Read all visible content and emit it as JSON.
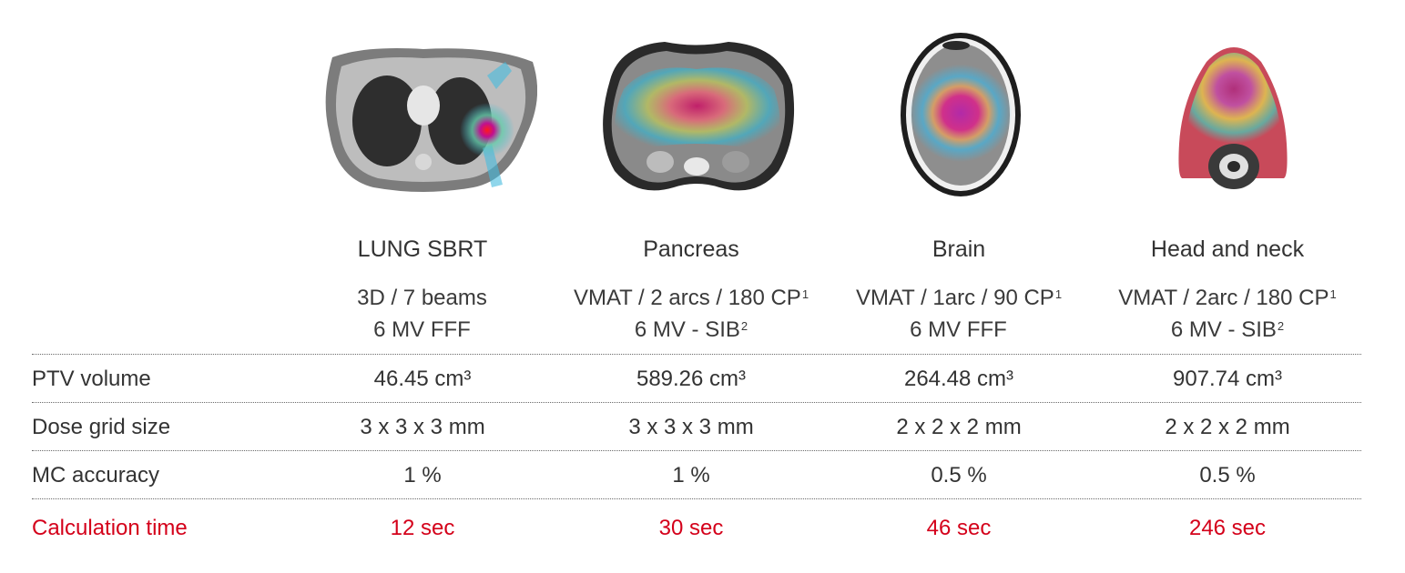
{
  "columns": [
    {
      "title": "LUNG SBRT",
      "plan_line1": "3D / 7 beams",
      "plan_line1_sup": "",
      "plan_line2": "6 MV FFF",
      "plan_line2_sup": "",
      "ptv_volume": "46.45 cm³",
      "dose_grid": "3 x 3 x 3 mm",
      "mc_accuracy": "1 %",
      "calc_time": "12 sec"
    },
    {
      "title": "Pancreas",
      "plan_line1": "VMAT / 2 arcs / 180 CP",
      "plan_line1_sup": "1",
      "plan_line2": "6 MV - SIB",
      "plan_line2_sup": "2",
      "ptv_volume": "589.26 cm³",
      "dose_grid": "3 x 3 x 3 mm",
      "mc_accuracy": "1 %",
      "calc_time": "30 sec"
    },
    {
      "title": "Brain",
      "plan_line1": "VMAT / 1arc / 90 CP",
      "plan_line1_sup": "1",
      "plan_line2": "6 MV FFF",
      "plan_line2_sup": "",
      "ptv_volume": "264.48 cm³",
      "dose_grid": "2 x 2 x 2 mm",
      "mc_accuracy": "0.5 %",
      "calc_time": "46 sec"
    },
    {
      "title": "Head and neck",
      "plan_line1": "VMAT / 2arc / 180 CP",
      "plan_line1_sup": "1",
      "plan_line2": "6 MV - SIB",
      "plan_line2_sup": "2",
      "ptv_volume": "907.74 cm³",
      "dose_grid": "2 x 2 x 2 mm",
      "mc_accuracy": "0.5 %",
      "calc_time": "246 sec"
    }
  ],
  "row_labels": {
    "ptv_volume": "PTV volume",
    "dose_grid": "Dose grid size",
    "mc_accuracy": "MC accuracy",
    "calc_time": "Calculation time"
  },
  "colors": {
    "highlight": "#d4001a",
    "text": "#333333"
  }
}
